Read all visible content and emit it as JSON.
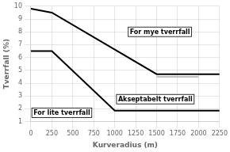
{
  "chart_data": {
    "type": "line",
    "xlabel": "Kurveradius (m)",
    "ylabel": "Tverrfall (%)",
    "xlim": [
      0,
      2250
    ],
    "ylim": [
      1,
      10
    ],
    "xticks": [
      0,
      250,
      500,
      750,
      1000,
      1250,
      1500,
      1750,
      2000,
      2250
    ],
    "yticks": [
      1,
      2,
      3,
      4,
      5,
      6,
      7,
      8,
      9,
      10
    ],
    "grid": true,
    "series": [
      {
        "x": [
          0,
          250,
          1500,
          2250
        ],
        "values": [
          9.8,
          9.5,
          4.7,
          4.7
        ],
        "color": "#000000"
      },
      {
        "x": [
          0,
          250,
          1000,
          2250
        ],
        "values": [
          6.5,
          6.5,
          1.85,
          1.85
        ],
        "color": "#000000"
      },
      {
        "x": [
          1500,
          2000
        ],
        "values": [
          4.5,
          4.5
        ],
        "color": "#aaaaaa"
      }
    ],
    "annotations": [
      {
        "text": "For mye tverrfall",
        "x": 1180,
        "y": 8.0
      },
      {
        "text": "For lite tverrfall",
        "x": 30,
        "y": 1.68
      },
      {
        "text": "Akseptabelt tverrfall",
        "x": 1040,
        "y": 2.75
      }
    ]
  }
}
